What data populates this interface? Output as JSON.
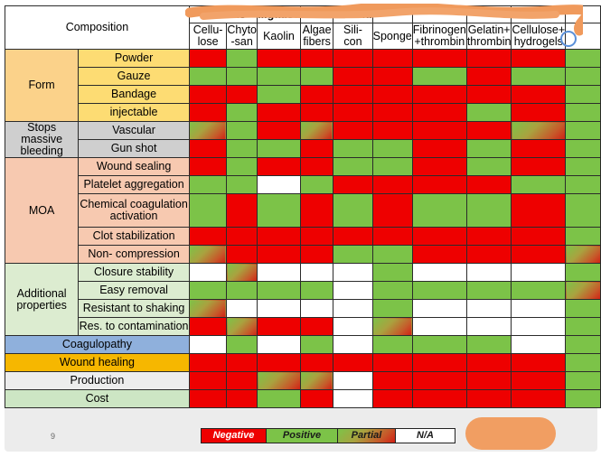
{
  "top_headers": [
    {
      "group": "W... ...ds",
      "names": [
        "Cellu-\nlose",
        "Chyto\n-san"
      ]
    },
    {
      "group": "...gause",
      "names": [
        "Kaolin"
      ]
    },
    {
      "group": "",
      "names": [
        "Algae\nfibers"
      ]
    },
    {
      "group": "...Bond",
      "names": [
        "Sili-\ncon"
      ]
    },
    {
      "group": "",
      "names": [
        "Sponge"
      ]
    },
    {
      "group": "",
      "names": [
        "Fibrinogen\n+thrombin"
      ]
    },
    {
      "group": "",
      "names": [
        "Gelatin+\nthrombin"
      ]
    },
    {
      "group": "...t",
      "names": [
        "Cellulose+\nhydrogels"
      ]
    },
    {
      "group": "",
      "names": [
        ""
      ]
    }
  ],
  "composition_label": "Composition",
  "groups": [
    {
      "label": "Form",
      "style": "grp-orange",
      "subs": [
        {
          "label": "Powder",
          "values": [
            "neg",
            "pos",
            "neg",
            "neg",
            "neg",
            "neg",
            "neg",
            "neg",
            "neg",
            "pos"
          ]
        },
        {
          "label": "Gauze",
          "values": [
            "pos",
            "pos",
            "pos",
            "pos",
            "neg",
            "neg",
            "pos",
            "neg",
            "pos",
            "pos"
          ]
        },
        {
          "label": "Bandage",
          "values": [
            "neg",
            "neg",
            "pos",
            "neg",
            "neg",
            "neg",
            "neg",
            "neg",
            "neg",
            "pos"
          ]
        },
        {
          "label": "injectable",
          "values": [
            "neg",
            "pos",
            "neg",
            "neg",
            "neg",
            "neg",
            "neg",
            "pos",
            "neg",
            "pos"
          ]
        }
      ]
    },
    {
      "label": "Stops massive bleeding",
      "style": "grp-gray",
      "subs": [
        {
          "label": "Vascular",
          "values": [
            "par",
            "pos",
            "neg",
            "par",
            "neg",
            "neg",
            "neg",
            "neg",
            "par",
            "pos"
          ]
        },
        {
          "label": "Gun shot",
          "values": [
            "neg",
            "pos",
            "pos",
            "neg",
            "pos",
            "pos",
            "neg",
            "pos",
            "neg",
            "pos"
          ]
        }
      ]
    },
    {
      "label": "MOA",
      "style": "grp-salmon",
      "subs": [
        {
          "label": "Wound sealing",
          "values": [
            "neg",
            "pos",
            "neg",
            "neg",
            "pos",
            "pos",
            "neg",
            "pos",
            "neg",
            "pos"
          ]
        },
        {
          "label": "Platelet aggregation",
          "values": [
            "pos",
            "pos",
            "na",
            "pos",
            "neg",
            "neg",
            "neg",
            "neg",
            "pos",
            "pos"
          ]
        },
        {
          "label": "Chemical coagulation activation",
          "values": [
            "pos",
            "neg",
            "pos",
            "neg",
            "pos",
            "neg",
            "pos",
            "pos",
            "neg",
            "pos"
          ]
        },
        {
          "label": "Clot stabilization",
          "values": [
            "neg",
            "neg",
            "neg",
            "neg",
            "neg",
            "neg",
            "neg",
            "neg",
            "neg",
            "pos"
          ]
        },
        {
          "label": "Non- compression",
          "values": [
            "par",
            "neg",
            "neg",
            "neg",
            "pos",
            "pos",
            "neg",
            "neg",
            "neg",
            "par"
          ]
        }
      ]
    },
    {
      "label": "Additional properties",
      "style": "grp-green",
      "subs": [
        {
          "label": "Closure stability",
          "values": [
            "na",
            "par",
            "na",
            "na",
            "na",
            "pos",
            "na",
            "na",
            "na",
            "pos"
          ]
        },
        {
          "label": "Easy removal",
          "values": [
            "pos",
            "pos",
            "pos",
            "pos",
            "na",
            "pos",
            "pos",
            "pos",
            "pos",
            "par"
          ]
        },
        {
          "label": "Resistant to shaking",
          "values": [
            "par",
            "na",
            "na",
            "na",
            "na",
            "pos",
            "na",
            "na",
            "na",
            "pos"
          ]
        },
        {
          "label": "Res. to contamination",
          "values": [
            "neg",
            "par",
            "neg",
            "neg",
            "na",
            "par",
            "na",
            "na",
            "na",
            "pos"
          ]
        }
      ]
    }
  ],
  "singles": [
    {
      "label": "Coagulopathy",
      "style": "c-blue",
      "values": [
        "na",
        "pos",
        "na",
        "pos",
        "na",
        "pos",
        "pos",
        "pos",
        "na",
        "pos"
      ]
    },
    {
      "label": "Wound healing",
      "style": "c-gold",
      "values": [
        "neg",
        "neg",
        "neg",
        "neg",
        "neg",
        "neg",
        "neg",
        "neg",
        "neg",
        "pos"
      ]
    },
    {
      "label": "Production",
      "style": "c-lgray",
      "values": [
        "neg",
        "neg",
        "par",
        "par",
        "na",
        "neg",
        "neg",
        "neg",
        "neg",
        "pos"
      ]
    },
    {
      "label": "Cost",
      "style": "c-lgreen",
      "values": [
        "neg",
        "neg",
        "pos",
        "neg",
        "na",
        "neg",
        "neg",
        "neg",
        "neg",
        "pos"
      ]
    }
  ],
  "legend": [
    {
      "label": "Negative",
      "style": "neg",
      "text_color": "#ffffff"
    },
    {
      "label": "Positive",
      "style": "pos",
      "text_color": "#1a1a1a"
    },
    {
      "label": "Partial",
      "style": "par",
      "text_color": "#1a1a1a"
    },
    {
      "label": "N/A",
      "style": "na",
      "text_color": "#1a1a1a"
    }
  ],
  "page_number": "9",
  "colors": {
    "negative": "#ee0000",
    "positive": "#7cc348",
    "partial": "#b07a38",
    "na": "#ffffff",
    "redaction": "#f09a5c"
  },
  "icons": {
    "corner": "magnifier-icon"
  }
}
